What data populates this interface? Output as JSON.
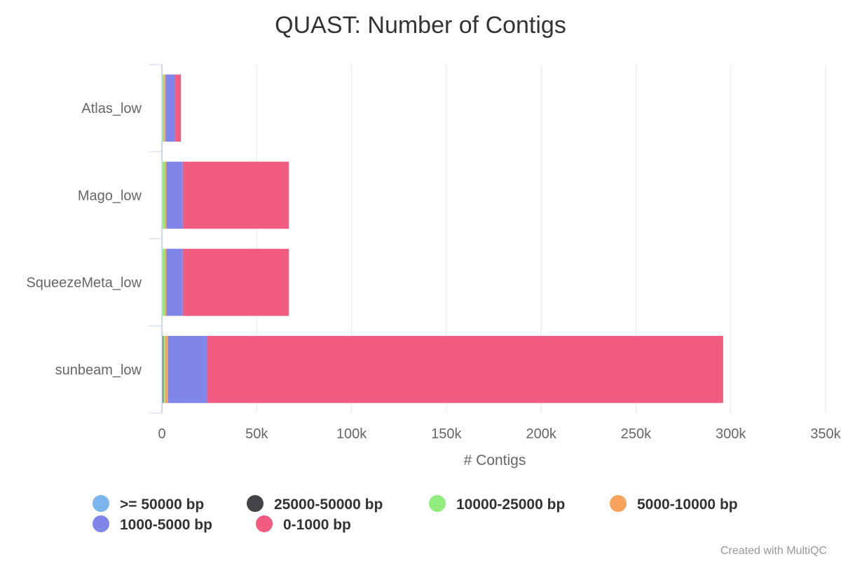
{
  "chart_data": {
    "type": "bar",
    "orientation": "horizontal",
    "stacked": true,
    "title": "QUAST: Number of Contigs",
    "xlabel": "# Contigs",
    "ylabel": "",
    "xlim": [
      0,
      350000
    ],
    "x_ticks": [
      0,
      50000,
      100000,
      150000,
      200000,
      250000,
      300000,
      350000
    ],
    "x_tick_labels": [
      "0",
      "50k",
      "100k",
      "150k",
      "200k",
      "250k",
      "300k",
      "350k"
    ],
    "grid": true,
    "legend_position": "bottom",
    "categories": [
      "Atlas_low",
      "Mago_low",
      "SqueezeMeta_low",
      "sunbeam_low"
    ],
    "series": [
      {
        "name": ">= 50000 bp",
        "color": "#7cb5ec",
        "values": [
          100,
          150,
          150,
          250
        ]
      },
      {
        "name": "25000-50000 bp",
        "color": "#434348",
        "values": [
          150,
          250,
          250,
          450
        ]
      },
      {
        "name": "10000-25000 bp",
        "color": "#90ed7d",
        "values": [
          900,
          1200,
          1200,
          900
        ]
      },
      {
        "name": "5000-10000 bp",
        "color": "#f7a35c",
        "values": [
          800,
          800,
          800,
          1600
        ]
      },
      {
        "name": "1000-5000 bp",
        "color": "#8085e9",
        "values": [
          5100,
          8600,
          8600,
          20800
        ]
      },
      {
        "name": "0-1000 bp",
        "color": "#f15c80",
        "values": [
          3000,
          56000,
          56000,
          272000
        ]
      }
    ]
  },
  "credit": "Created with MultiQC"
}
